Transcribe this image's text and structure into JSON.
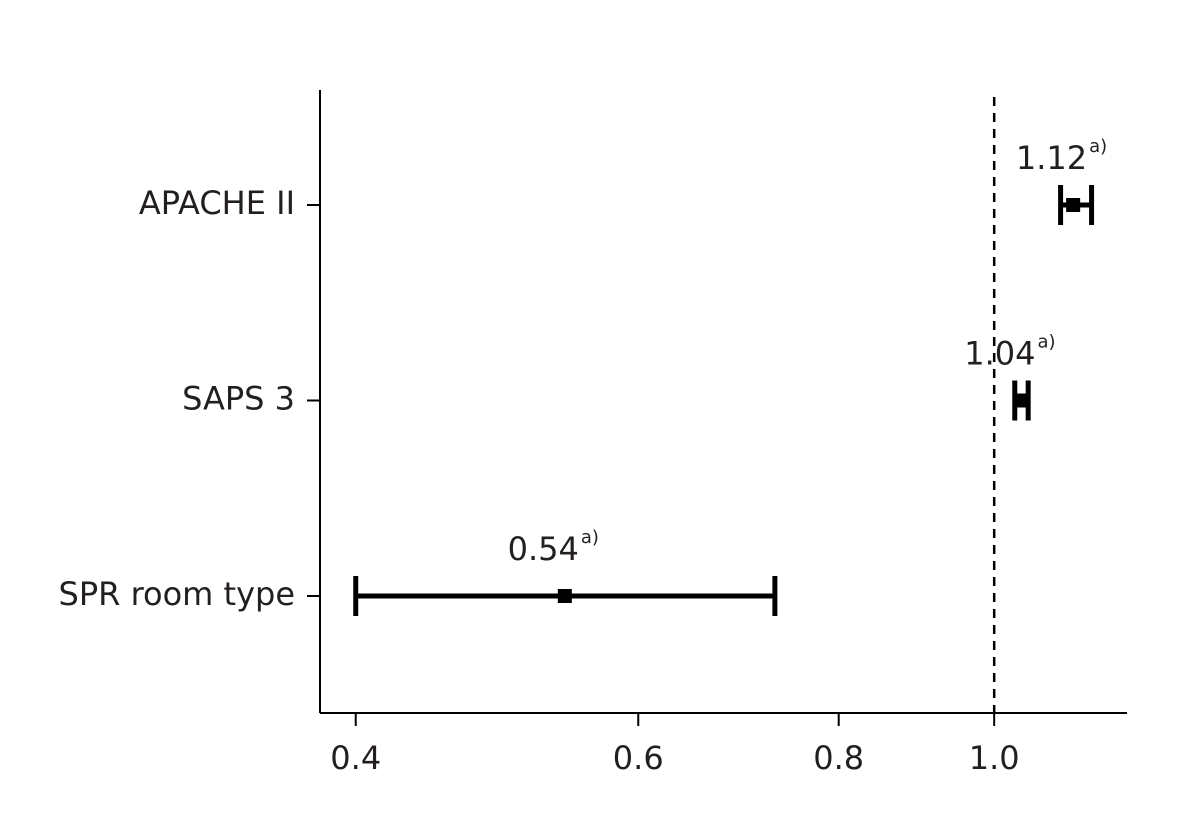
{
  "chart_data": {
    "type": "forest",
    "categories": [
      "APACHE II",
      "SAPS 3",
      "SPR room type"
    ],
    "values": [
      1.12,
      1.04,
      0.54
    ],
    "value_labels": [
      "1.12",
      "1.04",
      "0.54"
    ],
    "label_superscript": "a)",
    "lower": [
      1.1,
      1.03,
      0.4
    ],
    "upper": [
      1.15,
      1.05,
      0.73
    ],
    "color": "#000000",
    "log_x": true,
    "reference_line": 1,
    "xlim": [
      0.38,
      1.21
    ],
    "xticks": [
      0.4,
      0.6,
      0.8,
      {
        "value": 1,
        "label": "1.0"
      }
    ]
  }
}
